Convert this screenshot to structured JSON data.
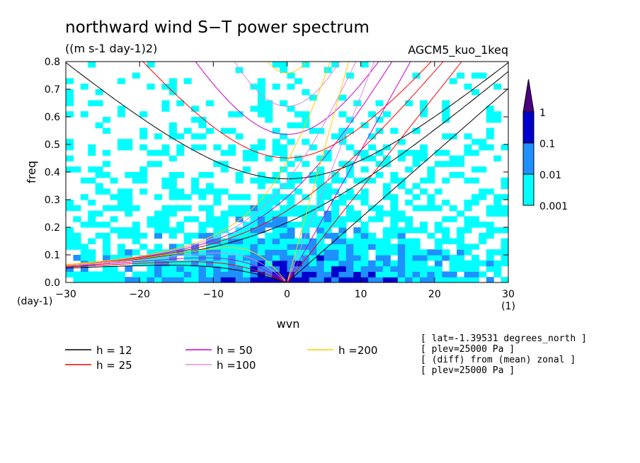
{
  "chart_data": {
    "type": "heatmap",
    "title": "northward wind S−T power spectrum",
    "subtitle": "((m s-1 day-1)2)",
    "model_label": "AGCM5_kuo_1keq",
    "xlabel": "wvn",
    "ylabel": "freq",
    "x_unit": "(1)",
    "y_unit": "(day-1)",
    "xlim": [
      -30,
      30
    ],
    "ylim": [
      0,
      0.8
    ],
    "x_ticks": [
      -30,
      -20,
      -10,
      0,
      10,
      20,
      30
    ],
    "y_ticks": [
      0.0,
      0.1,
      0.2,
      0.3,
      0.4,
      0.5,
      0.6,
      0.7,
      0.8
    ],
    "x_tick_labels": [
      "−30",
      "−20",
      "−10",
      "0",
      "10",
      "20",
      "30"
    ],
    "y_tick_labels": [
      "0.0",
      "0.1",
      "0.2",
      "0.3",
      "0.4",
      "0.5",
      "0.6",
      "0.7",
      "0.8"
    ],
    "colorbar": {
      "levels": [
        0.001,
        0.01,
        0.1,
        1
      ],
      "labels": [
        "0.001",
        "0.01",
        "0.1",
        "1"
      ],
      "colors": [
        "#00ffff",
        "#1e90ff",
        "#0000cd",
        "#4b0082"
      ]
    },
    "dispersion_curves": [
      {
        "label": "h = 12",
        "h": 12,
        "color": "#000000"
      },
      {
        "label": "h = 25",
        "h": 25,
        "color": "#ff0000"
      },
      {
        "label": "h = 50",
        "h": 50,
        "color": "#cc00cc"
      },
      {
        "label": "h =100",
        "h": 100,
        "color": "#dd88dd"
      },
      {
        "label": "h =200",
        "h": 200,
        "color": "#ffcc00"
      }
    ],
    "annotations": [
      "[ lat=-1.39531 degrees_north ]",
      "[ plev=25000 Pa ]",
      "[ (diff) from (mean) zonal ]",
      "[ plev=25000 Pa ]"
    ]
  }
}
